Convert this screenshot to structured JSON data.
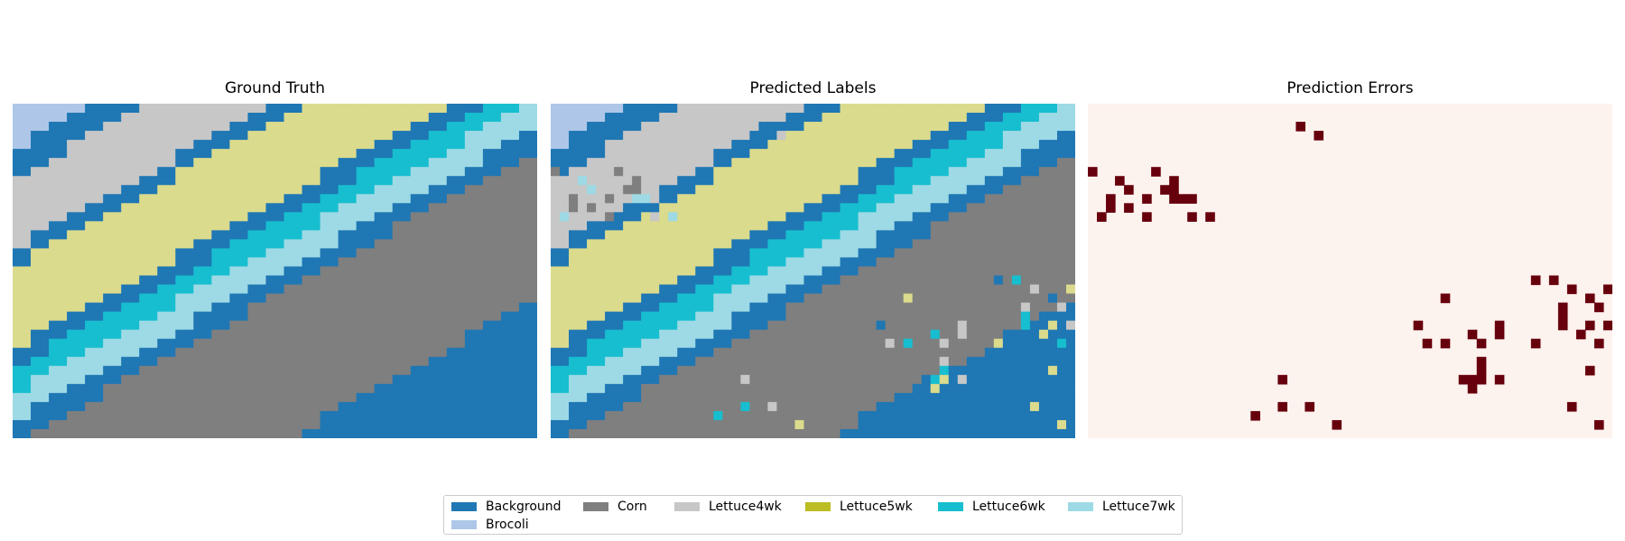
{
  "chart_data": [
    {
      "type": "heatmap",
      "title": "Ground Truth",
      "grid": false,
      "axes": "off",
      "description_of_values": "class label per pixel; diagonal stripes rising left-to-right in order: Brocoli, Background, Lettuce4wk, Background, Lettuce5wk, Background, Lettuce6wk, Lettuce7wk, Background, Corn, Background"
    },
    {
      "type": "heatmap",
      "title": "Predicted Labels",
      "grid": false,
      "axes": "off",
      "description_of_values": "same stripe layout as Ground Truth with scattered misclassified pixels"
    },
    {
      "type": "heatmap",
      "title": "Prediction Errors",
      "grid": false,
      "axes": "off",
      "colormap": [
        "#fdf3ee",
        "#67000d"
      ],
      "description_of_values": "binary map; dark red marks pixels where prediction differs from ground truth"
    }
  ],
  "legend": {
    "placement": "bottom-center",
    "entries": [
      {
        "label": "Background",
        "color": "#1f77b4"
      },
      {
        "label": "Corn",
        "color": "#7f7f7f"
      },
      {
        "label": "Lettuce4wk",
        "color": "#c7c7c7"
      },
      {
        "label": "Lettuce5wk",
        "color": "#bcbd22"
      },
      {
        "label": "Lettuce6wk",
        "color": "#17becf"
      },
      {
        "label": "Lettuce7wk",
        "color": "#9edae5"
      },
      {
        "label": "Brocoli",
        "color": "#aec7e8"
      }
    ]
  },
  "colors": {
    "Background": "#1f77b4",
    "Brocoli": "#aec7e8",
    "Lettuce4wk": "#c7c7c7",
    "Lettuce5wk_map": "#dbdb8d",
    "Lettuce6wk": "#17becf",
    "Lettuce7wk": "#9edae5",
    "Corn": "#7f7f7f",
    "error_bg": "#fdf3ee",
    "error_fg": "#67000d"
  }
}
